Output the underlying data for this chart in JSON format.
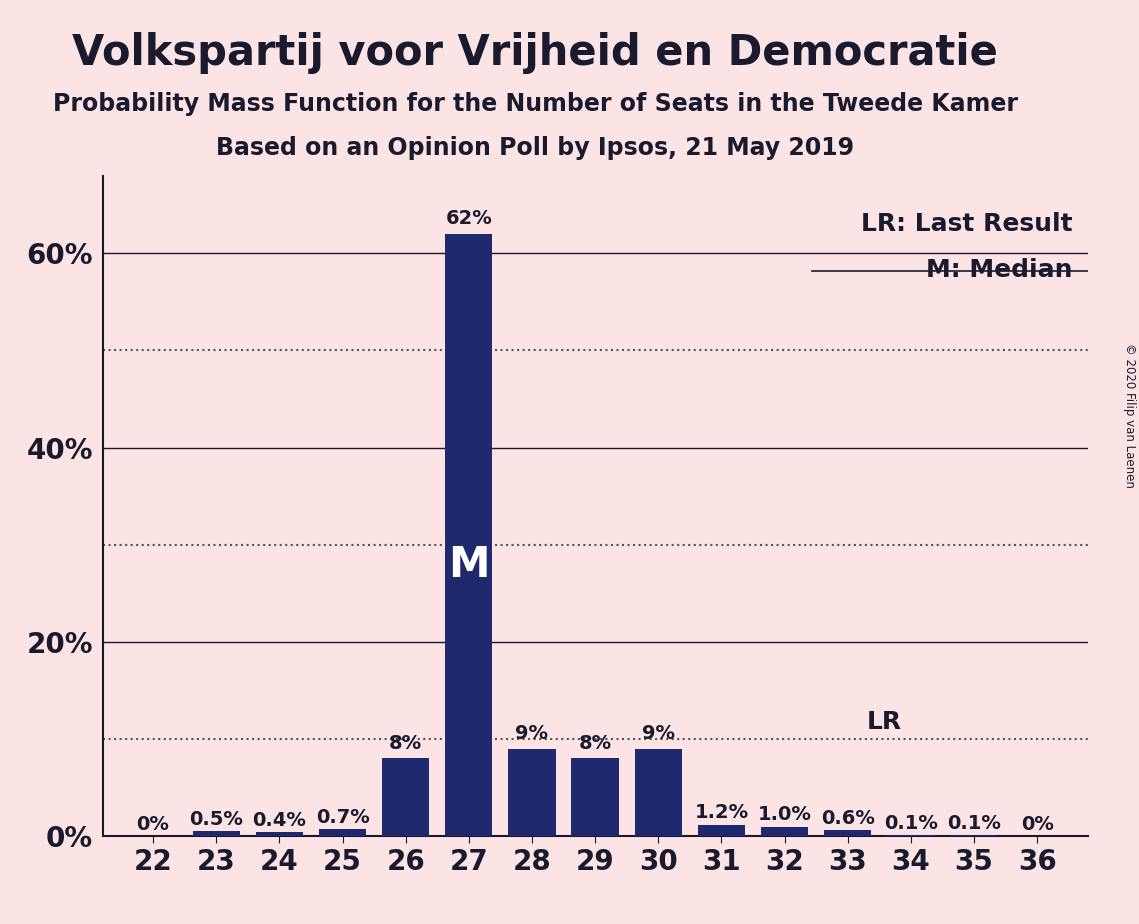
{
  "title": "Volkspartij voor Vrijheid en Democratie",
  "subtitle": "Probability Mass Function for the Number of Seats in the Tweede Kamer",
  "subsubtitle": "Based on an Opinion Poll by Ipsos, 21 May 2019",
  "copyright": "© 2020 Filip van Laenen",
  "background_color": "#fce4e4",
  "bar_color": "#1f2a6e",
  "seats": [
    22,
    23,
    24,
    25,
    26,
    27,
    28,
    29,
    30,
    31,
    32,
    33,
    34,
    35,
    36
  ],
  "values": [
    0.0,
    0.5,
    0.4,
    0.7,
    8.0,
    62.0,
    9.0,
    8.0,
    9.0,
    1.2,
    1.0,
    0.6,
    0.1,
    0.1,
    0.0
  ],
  "labels": [
    "0%",
    "0.5%",
    "0.4%",
    "0.7%",
    "8%",
    "62%",
    "9%",
    "8%",
    "9%",
    "1.2%",
    "1.0%",
    "0.6%",
    "0.1%",
    "0.1%",
    "0%"
  ],
  "median_seat": 27,
  "lr_value": 10.0,
  "lr_seat": 33,
  "legend_lr": "LR: Last Result",
  "legend_m": "M: Median",
  "solid_gridlines": [
    20,
    40,
    60
  ],
  "dotted_gridlines": [
    10,
    30,
    50
  ],
  "ytick_labels": [
    "0%",
    "20%",
    "40%",
    "60%"
  ],
  "ytick_values": [
    0,
    20,
    40,
    60
  ],
  "ylim": [
    0,
    68
  ],
  "xlim": [
    21.2,
    36.8
  ],
  "title_fontsize": 30,
  "subtitle_fontsize": 17,
  "subsubtitle_fontsize": 17,
  "axis_fontsize": 20,
  "bar_label_fontsize": 14,
  "legend_fontsize": 18,
  "median_label_fontsize": 30,
  "bar_width": 0.75
}
